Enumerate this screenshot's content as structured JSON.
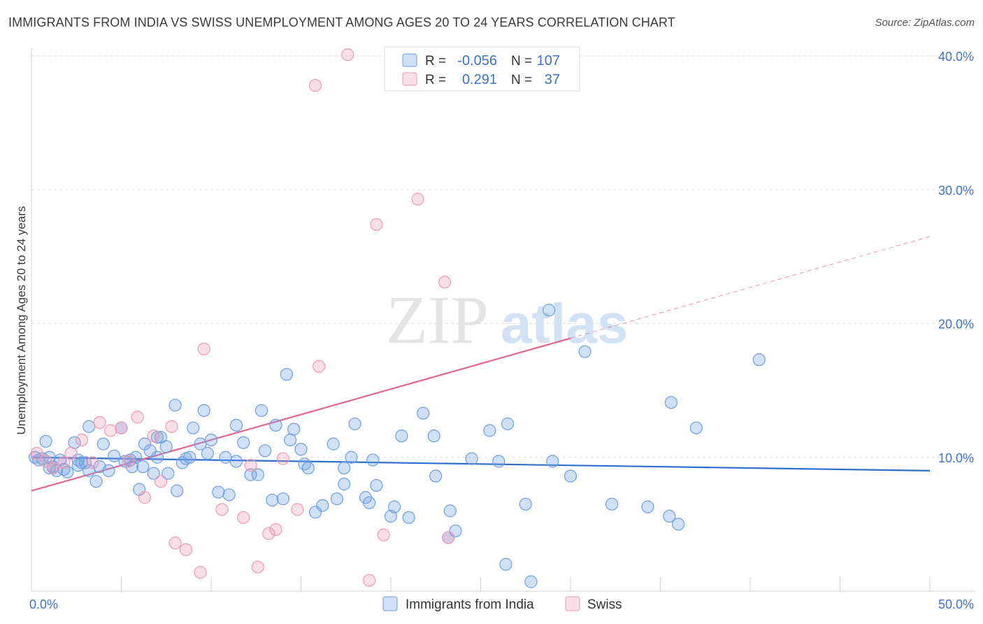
{
  "title": "IMMIGRANTS FROM INDIA VS SWISS UNEMPLOYMENT AMONG AGES 20 TO 24 YEARS CORRELATION CHART",
  "source": "Source: ZipAtlas.com",
  "watermark": {
    "zip": "ZIP",
    "atlas": "atlas"
  },
  "colors": {
    "india_fill": "rgba(120,165,230,0.35)",
    "india_stroke": "#6f9ee0",
    "india_line": "#2f6fcf",
    "swiss_fill": "rgba(240,150,180,0.30)",
    "swiss_stroke": "#ec9ab5",
    "swiss_line": "#e0668f",
    "tick_text": "#3d72c8",
    "grid": "#dddddd"
  },
  "legend": {
    "india": {
      "r_label": "R =",
      "r_value": "-0.056",
      "n_label": "N =",
      "n_value": "107"
    },
    "swiss": {
      "r_label": "R =",
      "r_value": "0.291",
      "n_label": "N =",
      "n_value": "37"
    }
  },
  "chart_data": {
    "type": "scatter",
    "title": "IMMIGRANTS FROM INDIA VS SWISS UNEMPLOYMENT AMONG AGES 20 TO 24 YEARS CORRELATION CHART",
    "xlabel": "",
    "ylabel": "Unemployment Among Ages 20 to 24 years",
    "xlim": [
      0,
      50
    ],
    "ylim": [
      0,
      40
    ],
    "x_tick_labels": [
      "0.0%",
      "50.0%"
    ],
    "y_ticks": [
      10,
      20,
      30,
      40
    ],
    "y_tick_labels": [
      "10.0%",
      "20.0%",
      "30.0%",
      "40.0%"
    ],
    "legend_position": "top-center",
    "series": [
      {
        "name": "Immigrants from India",
        "color": "#6f9ee0",
        "trend": {
          "x0": 0,
          "y0": 10.0,
          "x1": 50,
          "y1": 9.0,
          "solid_to": 50
        },
        "points": [
          [
            0.2,
            10.0
          ],
          [
            0.4,
            9.8
          ],
          [
            0.6,
            9.9
          ],
          [
            0.8,
            11.2
          ],
          [
            1.0,
            9.2
          ],
          [
            1.2,
            9.3
          ],
          [
            1.4,
            9.0
          ],
          [
            1.6,
            9.8
          ],
          [
            1.8,
            9.1
          ],
          [
            2.0,
            8.9
          ],
          [
            2.4,
            11.1
          ],
          [
            2.6,
            9.4
          ],
          [
            2.8,
            9.6
          ],
          [
            3.0,
            9.6
          ],
          [
            3.2,
            9.0
          ],
          [
            3.6,
            8.2
          ],
          [
            3.8,
            9.3
          ],
          [
            4.0,
            11.0
          ],
          [
            4.3,
            9.0
          ],
          [
            4.6,
            10.1
          ],
          [
            5.0,
            12.2
          ],
          [
            5.2,
            9.7
          ],
          [
            5.5,
            9.8
          ],
          [
            5.8,
            10.0
          ],
          [
            6.0,
            7.6
          ],
          [
            6.2,
            9.3
          ],
          [
            6.3,
            11.0
          ],
          [
            6.6,
            10.5
          ],
          [
            6.8,
            8.8
          ],
          [
            7.0,
            10.0
          ],
          [
            7.2,
            11.5
          ],
          [
            7.5,
            10.8
          ],
          [
            7.6,
            8.8
          ],
          [
            8.0,
            13.9
          ],
          [
            8.1,
            7.5
          ],
          [
            8.4,
            9.6
          ],
          [
            8.6,
            9.9
          ],
          [
            8.8,
            10.0
          ],
          [
            9.0,
            12.2
          ],
          [
            9.6,
            13.5
          ],
          [
            9.4,
            11.0
          ],
          [
            9.8,
            10.3
          ],
          [
            10.0,
            11.3
          ],
          [
            10.4,
            7.4
          ],
          [
            10.8,
            10.0
          ],
          [
            11.0,
            7.2
          ],
          [
            11.4,
            12.4
          ],
          [
            11.8,
            11.1
          ],
          [
            12.2,
            8.7
          ],
          [
            12.6,
            8.7
          ],
          [
            12.8,
            13.5
          ],
          [
            13.0,
            10.5
          ],
          [
            13.4,
            6.8
          ],
          [
            13.6,
            12.4
          ],
          [
            14.0,
            6.9
          ],
          [
            14.2,
            16.2
          ],
          [
            14.4,
            11.3
          ],
          [
            14.6,
            12.1
          ],
          [
            15.0,
            10.6
          ],
          [
            15.2,
            9.5
          ],
          [
            15.4,
            9.2
          ],
          [
            15.8,
            5.9
          ],
          [
            16.2,
            6.4
          ],
          [
            16.8,
            11.0
          ],
          [
            17.0,
            6.9
          ],
          [
            17.4,
            9.2
          ],
          [
            17.4,
            8.0
          ],
          [
            17.8,
            10.0
          ],
          [
            18.0,
            12.5
          ],
          [
            18.6,
            7.0
          ],
          [
            18.8,
            6.6
          ],
          [
            19.0,
            9.8
          ],
          [
            19.2,
            7.9
          ],
          [
            20.0,
            5.6
          ],
          [
            20.2,
            6.3
          ],
          [
            20.6,
            11.6
          ],
          [
            21.0,
            5.5
          ],
          [
            21.8,
            13.3
          ],
          [
            22.4,
            11.6
          ],
          [
            23.3,
            6.0
          ],
          [
            22.5,
            8.6
          ],
          [
            23.2,
            4.0
          ],
          [
            23.6,
            4.5
          ],
          [
            24.5,
            9.9
          ],
          [
            25.5,
            12.0
          ],
          [
            26.5,
            12.5
          ],
          [
            26.0,
            9.7
          ],
          [
            26.4,
            2.0
          ],
          [
            27.5,
            6.5
          ],
          [
            27.8,
            0.7
          ],
          [
            28.8,
            21.0
          ],
          [
            29.0,
            9.7
          ],
          [
            30.0,
            8.6
          ],
          [
            30.8,
            17.9
          ],
          [
            32.3,
            6.5
          ],
          [
            34.3,
            6.3
          ],
          [
            35.5,
            5.6
          ],
          [
            35.6,
            14.1
          ],
          [
            36.0,
            5.0
          ],
          [
            37.0,
            12.2
          ],
          [
            40.5,
            17.3
          ],
          [
            5.6,
            9.3
          ],
          [
            11.4,
            9.7
          ],
          [
            2.6,
            9.8
          ],
          [
            1.0,
            10.0
          ],
          [
            3.2,
            12.3
          ],
          [
            7.0,
            11.5
          ]
        ]
      },
      {
        "name": "Swiss",
        "color": "#ec9ab5",
        "trend": {
          "x0": 0,
          "y0": 7.5,
          "x1": 50,
          "y1": 26.5,
          "solid_to": 30
        },
        "points": [
          [
            0.3,
            10.3
          ],
          [
            0.8,
            9.7
          ],
          [
            1.2,
            9.2
          ],
          [
            1.8,
            9.6
          ],
          [
            2.2,
            10.3
          ],
          [
            2.8,
            11.3
          ],
          [
            3.4,
            9.6
          ],
          [
            3.8,
            12.6
          ],
          [
            4.4,
            12.0
          ],
          [
            5.0,
            12.2
          ],
          [
            5.4,
            9.7
          ],
          [
            5.9,
            13.0
          ],
          [
            6.3,
            7.0
          ],
          [
            6.8,
            11.6
          ],
          [
            7.2,
            8.2
          ],
          [
            7.8,
            12.3
          ],
          [
            8.0,
            3.6
          ],
          [
            8.6,
            3.1
          ],
          [
            9.4,
            1.4
          ],
          [
            9.6,
            18.1
          ],
          [
            10.6,
            6.1
          ],
          [
            11.8,
            5.5
          ],
          [
            12.2,
            9.4
          ],
          [
            12.6,
            1.8
          ],
          [
            13.2,
            4.3
          ],
          [
            13.6,
            4.6
          ],
          [
            14.0,
            9.9
          ],
          [
            14.8,
            6.1
          ],
          [
            15.8,
            37.8
          ],
          [
            16.0,
            16.8
          ],
          [
            17.6,
            40.1
          ],
          [
            18.8,
            0.8
          ],
          [
            19.2,
            27.4
          ],
          [
            19.6,
            4.2
          ],
          [
            21.5,
            29.3
          ],
          [
            23.0,
            23.1
          ],
          [
            23.2,
            4.0
          ]
        ]
      }
    ]
  },
  "bottom_legend": [
    "Immigrants from India",
    "Swiss"
  ]
}
